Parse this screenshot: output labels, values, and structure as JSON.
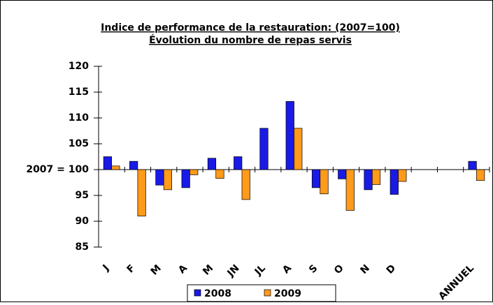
{
  "chart_data": {
    "type": "bar",
    "title": "Indice de performance de la restauration: (2007=100)",
    "subtitle": "Évolution du nombre de repas servis",
    "categories": [
      "J",
      "F",
      "M",
      "A",
      "M",
      "JN",
      "JL",
      "A",
      "S",
      "O",
      "N",
      "D",
      null,
      null,
      "ANNUEL"
    ],
    "series": [
      {
        "name": "2008",
        "color": "#1a1ae6",
        "values": [
          102.5,
          101.6,
          97.0,
          96.5,
          102.2,
          102.5,
          108.0,
          113.2,
          96.5,
          98.2,
          96.1,
          95.2,
          null,
          null,
          101.6
        ]
      },
      {
        "name": "2009",
        "color": "#ff9a1a",
        "values": [
          100.7,
          91.0,
          96.1,
          99.0,
          98.3,
          94.2,
          null,
          108.0,
          95.3,
          92.1,
          97.1,
          97.7,
          null,
          null,
          97.9
        ]
      }
    ],
    "ylim": [
      85,
      120
    ],
    "yticks": [
      85,
      90,
      95,
      {
        "value": 100,
        "label": "2007 = 100"
      },
      105,
      110,
      115,
      120
    ],
    "legend": "bottom"
  }
}
